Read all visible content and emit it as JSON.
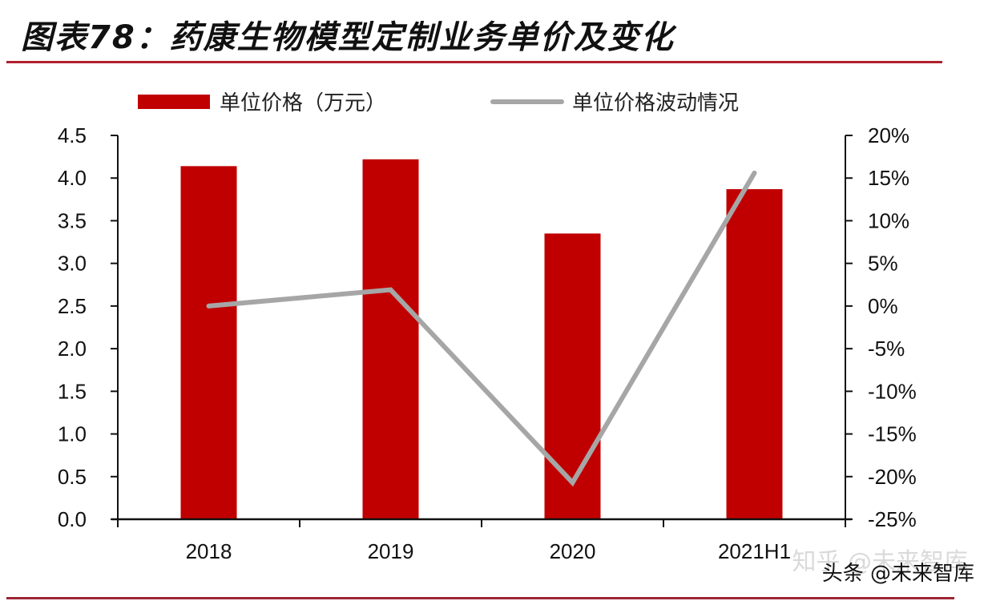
{
  "header": {
    "title": "图表78：药康生物模型定制业务单价及变化"
  },
  "legend": {
    "items": [
      {
        "label": "单位价格（万元）",
        "type": "bar",
        "color": "#c00000"
      },
      {
        "label": "单位价格波动情况",
        "type": "line",
        "color": "#a6a6a6"
      }
    ]
  },
  "watermark": {
    "text": "头条 @未来智库",
    "ghost_text": "知乎 @未来智库"
  },
  "colors": {
    "bar": "#c00000",
    "line": "#a6a6a6",
    "rule": "#b0202e",
    "axis": "#111111"
  },
  "chart_data": {
    "type": "bar+line",
    "title": "图表78：药康生物模型定制业务单价及变化",
    "categories": [
      "2018",
      "2019",
      "2020",
      "2021H1"
    ],
    "series": [
      {
        "name": "单位价格（万元）",
        "type": "bar",
        "axis": "left",
        "values": [
          4.14,
          4.22,
          3.35,
          3.87
        ]
      },
      {
        "name": "单位价格波动情况",
        "type": "line",
        "axis": "right",
        "values": [
          0.0,
          1.9,
          -20.7,
          15.6
        ],
        "unit": "%"
      }
    ],
    "left_axis": {
      "ylim": [
        0,
        4.5
      ],
      "ticks": [
        "0.0",
        "0.5",
        "1.0",
        "1.5",
        "2.0",
        "2.5",
        "3.0",
        "3.5",
        "4.0",
        "4.5"
      ]
    },
    "right_axis": {
      "ylim": [
        -25,
        20
      ],
      "ticks": [
        "-25%",
        "-20%",
        "-15%",
        "-10%",
        "-5%",
        "0%",
        "5%",
        "10%",
        "15%",
        "20%"
      ]
    },
    "xlabel": "",
    "ylabel": "",
    "grid": false,
    "legend_position": "top"
  }
}
